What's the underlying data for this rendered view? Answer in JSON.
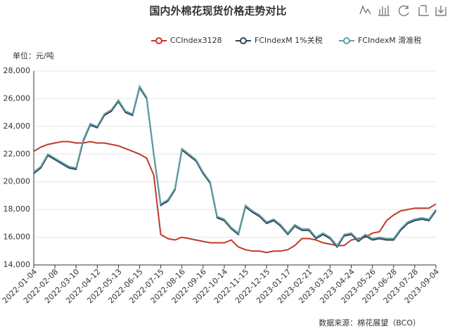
{
  "chart_data": {
    "type": "line",
    "title": "国内外棉花现货价格走势对比",
    "y_axis_label": "单位：元/吨",
    "source": "数据来源：棉花展望（BCO）",
    "categories": [
      "2022-01-04",
      null,
      null,
      "2022-02-08",
      null,
      null,
      "2022-03-10",
      null,
      null,
      "2022-04-12",
      null,
      null,
      "2022-05-13",
      null,
      null,
      "2022-06-15",
      null,
      null,
      "2022-07-15",
      null,
      null,
      "2022-08-16",
      null,
      null,
      "2022-09-16",
      null,
      null,
      "2022-10-14",
      null,
      null,
      "2022-11-15",
      null,
      null,
      "2022-12-15",
      null,
      null,
      "2023-01-17",
      null,
      null,
      "2023-02-21",
      null,
      null,
      "2023-03-23",
      null,
      null,
      "2023-04-24",
      null,
      null,
      "2023-05-26",
      null,
      null,
      "2023-06-28",
      null,
      null,
      "2023-07-28",
      null,
      null,
      "2023-09-04"
    ],
    "series": [
      {
        "name": "CCIndex3128",
        "color": "#c0392b",
        "values": [
          22200,
          22500,
          22700,
          22800,
          22900,
          22900,
          22800,
          22800,
          22900,
          22800,
          22800,
          22700,
          22600,
          22400,
          22200,
          22000,
          21700,
          20500,
          16200,
          15900,
          15800,
          16000,
          15900,
          15800,
          15700,
          15600,
          15600,
          15600,
          15800,
          15300,
          15100,
          15000,
          15000,
          14900,
          15000,
          15000,
          15100,
          15400,
          15900,
          15900,
          15800,
          15600,
          15500,
          15400,
          15400,
          15800,
          15900,
          16000,
          16300,
          16400,
          17200,
          17600,
          17900,
          18000,
          18100,
          18100,
          18100,
          18400
        ]
      },
      {
        "name": "FCIndexM 1%关税",
        "color": "#2f4554",
        "values": [
          20600,
          21000,
          21900,
          21600,
          21300,
          21000,
          20900,
          22900,
          24100,
          23900,
          24800,
          25100,
          25800,
          25000,
          24800,
          26800,
          26000,
          22000,
          18300,
          18600,
          19400,
          22300,
          21900,
          21500,
          20600,
          19900,
          17400,
          17200,
          16600,
          16200,
          18200,
          17800,
          17500,
          17000,
          17200,
          16800,
          16200,
          16800,
          16500,
          16500,
          15900,
          16200,
          15900,
          15300,
          16100,
          16200,
          15700,
          16100,
          15800,
          15900,
          15800,
          15800,
          16500,
          17000,
          17200,
          17300,
          17200,
          17900
        ]
      },
      {
        "name": "FCIndexM 滑准税",
        "color": "#61a0a8",
        "values": [
          20700,
          21100,
          22000,
          21700,
          21400,
          21100,
          21000,
          23000,
          24200,
          24000,
          24900,
          25200,
          25900,
          25100,
          24900,
          26900,
          26100,
          22100,
          18400,
          18700,
          19500,
          22400,
          22000,
          21600,
          20700,
          20000,
          17500,
          17300,
          16700,
          16300,
          18300,
          17900,
          17600,
          17100,
          17300,
          16900,
          16300,
          16900,
          16600,
          16600,
          16000,
          16300,
          16000,
          15400,
          16200,
          16300,
          15800,
          16200,
          15900,
          16000,
          15900,
          15900,
          16600,
          17100,
          17300,
          17400,
          17300,
          18000
        ]
      }
    ],
    "ylim": [
      14000,
      28000
    ],
    "yticks": [
      {
        "value": 14000,
        "label": "14,000"
      },
      {
        "value": 16000,
        "label": "16,000"
      },
      {
        "value": 18000,
        "label": "18,000"
      },
      {
        "value": 20000,
        "label": "20,000"
      },
      {
        "value": 22000,
        "label": "22,000"
      },
      {
        "value": 24000,
        "label": "24,000"
      },
      {
        "value": 26000,
        "label": "26,000"
      },
      {
        "value": 28000,
        "label": "28,000"
      }
    ],
    "grid": true
  }
}
